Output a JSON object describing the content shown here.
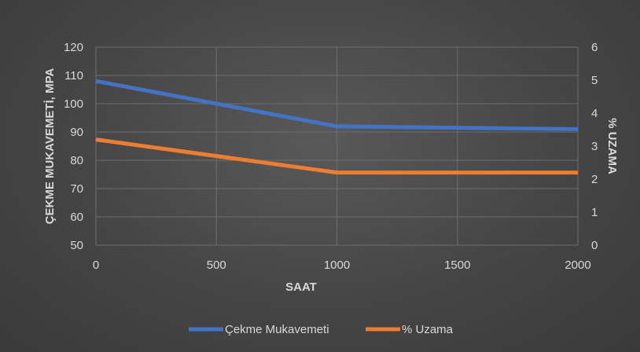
{
  "chart_data": {
    "type": "line",
    "xlabel": "SAAT",
    "ylabel": "ÇEKME MUKAVEMETİ, MPA",
    "y2label": "% UZAMA",
    "x_ticks": [
      "0",
      "500",
      "1000",
      "1500",
      "2000"
    ],
    "y_ticks": [
      "50",
      "60",
      "70",
      "80",
      "90",
      "100",
      "110",
      "120"
    ],
    "y2_ticks": [
      "0",
      "1",
      "2",
      "3",
      "4",
      "5",
      "6"
    ],
    "xlim": [
      0,
      2000
    ],
    "ylim": [
      50,
      120
    ],
    "y2lim": [
      0,
      6
    ],
    "grid": true,
    "legend_position": "bottom",
    "series": [
      {
        "name": "Çekme Mukavemeti",
        "axis": "left",
        "color": "#4472c4",
        "x": [
          0,
          1000,
          2000
        ],
        "values": [
          108,
          92,
          91
        ]
      },
      {
        "name": "% Uzama",
        "axis": "right",
        "color": "#ed7d31",
        "x": [
          0,
          1000,
          2000
        ],
        "values": [
          3.2,
          2.2,
          2.2
        ]
      }
    ]
  }
}
